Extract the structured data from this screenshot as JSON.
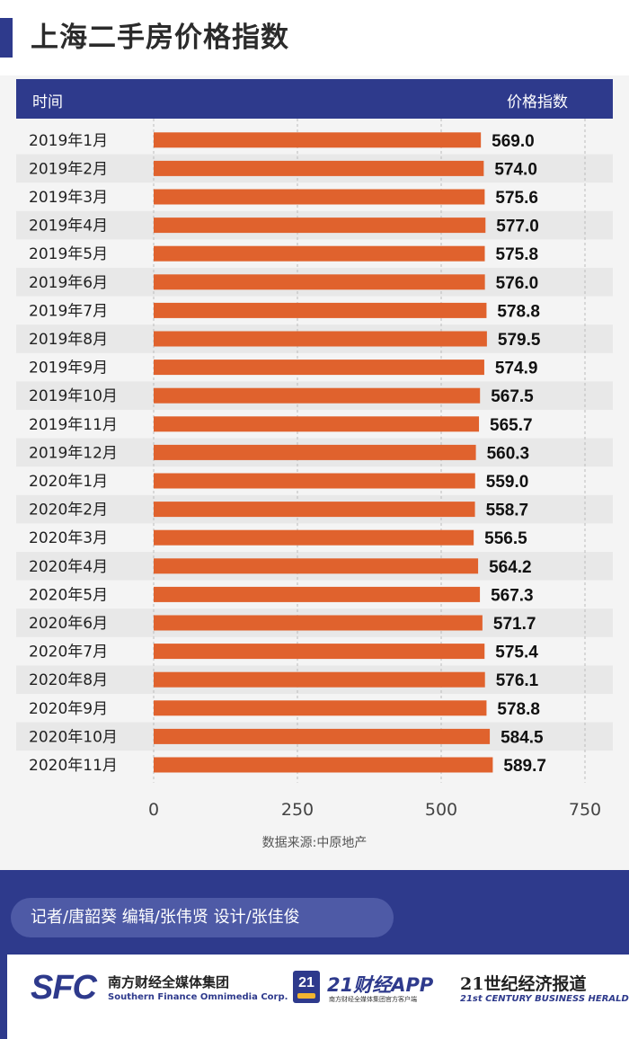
{
  "title": "上海二手房价格指数",
  "header": {
    "left": "时间",
    "right": "价格指数"
  },
  "source": "数据来源:中原地产",
  "credits": "记者/唐韶葵  编辑/张伟贤  设计/张佳俊",
  "logos": {
    "sfc_mark": "SFC",
    "sfc_cn": "南方财经全媒体集团",
    "sfc_en": "Southern Finance Omnimedia Corp.",
    "app_badge": "21",
    "app_title": "21财经APP",
    "app_sub": "南方财经全媒体集团官方客户端",
    "herald_cn": "21世纪经济报道",
    "herald_en": "21st CENTURY BUSINESS HERALD"
  },
  "colors": {
    "bar": "#e0622d",
    "header": "#2e3a8c",
    "stripe": "#e8e8e8"
  },
  "chart_data": {
    "type": "bar",
    "orientation": "horizontal",
    "categories": [
      "2019年1月",
      "2019年2月",
      "2019年3月",
      "2019年4月",
      "2019年5月",
      "2019年6月",
      "2019年7月",
      "2019年8月",
      "2019年9月",
      "2019年10月",
      "2019年11月",
      "2019年12月",
      "2020年1月",
      "2020年2月",
      "2020年3月",
      "2020年4月",
      "2020年5月",
      "2020年6月",
      "2020年7月",
      "2020年8月",
      "2020年9月",
      "2020年10月",
      "2020年11月"
    ],
    "values": [
      569.0,
      574.0,
      575.6,
      577.0,
      575.8,
      576.0,
      578.8,
      579.5,
      574.9,
      567.5,
      565.7,
      560.3,
      559.0,
      558.7,
      556.5,
      564.2,
      567.3,
      571.7,
      575.4,
      576.1,
      578.8,
      584.5,
      589.7
    ],
    "value_labels": [
      "569.0",
      "574.0",
      "575.6",
      "577.0",
      "575.8",
      "576.0",
      "578.8",
      "579.5",
      "574.9",
      "567.5",
      "565.7",
      "560.3",
      "559.0",
      "558.7",
      "556.5",
      "564.2",
      "567.3",
      "571.7",
      "575.4",
      "576.1",
      "578.8",
      "584.5",
      "589.7"
    ],
    "xticks": [
      0,
      250,
      500,
      750
    ],
    "xlim": [
      0,
      750
    ],
    "grid": "vertical dashed",
    "xlabel": "时间",
    "ylabel": "价格指数"
  }
}
